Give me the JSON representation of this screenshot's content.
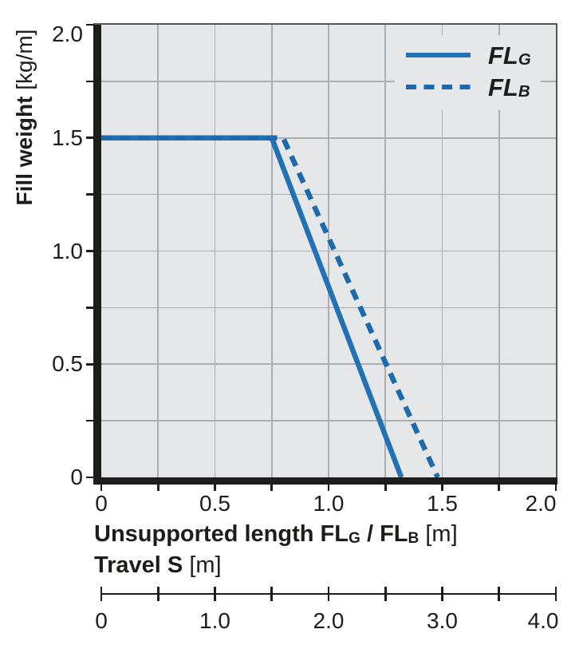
{
  "colors": {
    "line_blue": "#2171b4",
    "line_blue_dashed": "#1c69ac",
    "plot_bg": "#e6e7e8",
    "grid": "#abaeb0",
    "axis_ink": "#1d1d1b",
    "frame_gray": "#55575a",
    "text": "#1d1d1b"
  },
  "y_axis": {
    "title_text": "Fill weight",
    "unit": "[kg/m]",
    "tick_labels": [
      "2.0",
      "1.5",
      "1.0",
      "0.5",
      "0"
    ],
    "tick_values": [
      2.0,
      1.5,
      1.0,
      0.5,
      0
    ]
  },
  "x_axis": {
    "title_text": "Unsupported length",
    "fl_g": "FL",
    "sub_g": "G",
    "slash": "/",
    "fl_b": "FL",
    "sub_b": "B",
    "unit": "[m]",
    "tick_labels": [
      "0",
      "0.5",
      "1.0",
      "1.5",
      "2.0"
    ],
    "tick_values": [
      0,
      0.5,
      1.0,
      1.5,
      2.0
    ]
  },
  "travel_axis": {
    "title_text": "Travel S",
    "unit": "[m]",
    "tick_labels": [
      "0",
      "1.0",
      "2.0",
      "3.0",
      "4.0"
    ],
    "label_values": [
      0,
      1.0,
      2.0,
      3.0,
      4.0
    ]
  },
  "legend": {
    "items": [
      {
        "main": "FL",
        "sub": "G",
        "style": "solid"
      },
      {
        "main": "FL",
        "sub": "B",
        "style": "dashed"
      }
    ]
  },
  "chart_data": {
    "type": "line",
    "title": "",
    "xlabel": "Unsupported length FL_G / FL_B [m]",
    "ylabel": "Fill weight [kg/m]",
    "xlim": [
      0,
      2.0
    ],
    "ylim": [
      0,
      2.0
    ],
    "grid": true,
    "grid_step": 0.25,
    "x_tick_label_step": 0.5,
    "y_tick_label_step": 0.5,
    "legend_position": "top-right",
    "series": [
      {
        "name": "FL_G",
        "line_style": "solid",
        "color": "#2171b4",
        "points": [
          [
            0,
            1.5
          ],
          [
            0.75,
            1.5
          ],
          [
            1.32,
            0
          ]
        ]
      },
      {
        "name": "FL_B",
        "line_style": "dashed",
        "color": "#1c69ac",
        "points": [
          [
            0,
            1.5
          ],
          [
            0.8,
            1.5
          ],
          [
            1.48,
            0
          ]
        ]
      }
    ],
    "secondary_x_axis": {
      "label": "Travel S [m]",
      "range": [
        0,
        4.0
      ],
      "tick_step": 0.5,
      "labeled_ticks": [
        0,
        1.0,
        2.0,
        3.0,
        4.0
      ]
    }
  }
}
